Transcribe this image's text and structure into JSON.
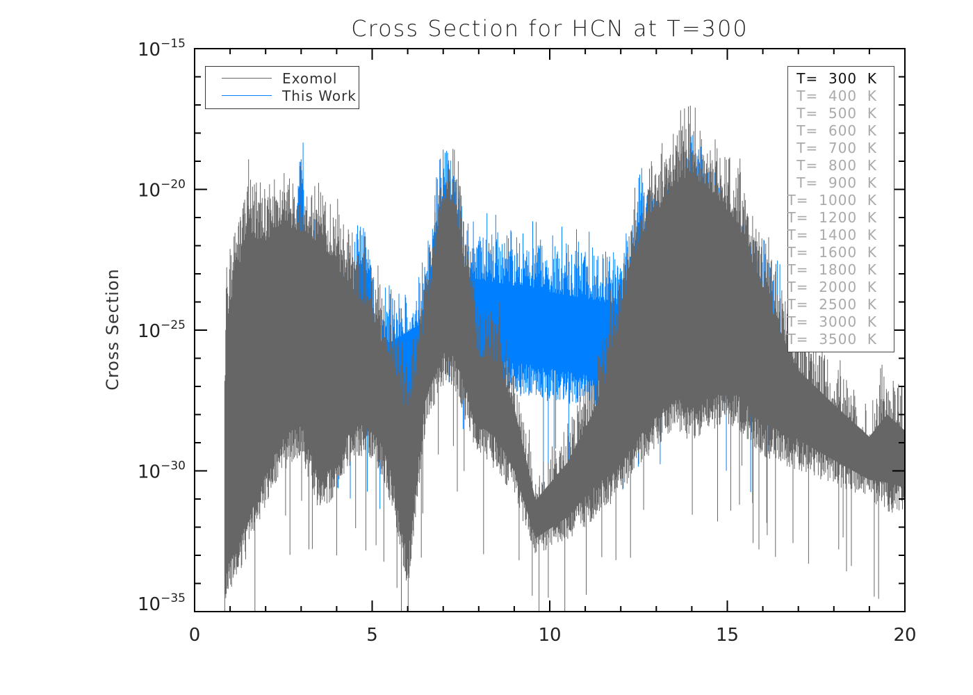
{
  "chart_data": {
    "type": "line",
    "title": "Cross Section for HCN at T=300",
    "xlabel": "",
    "ylabel": "Cross Section",
    "xlim": [
      0,
      20
    ],
    "ylim": [
      1e-35,
      1e-15
    ],
    "yscale": "log",
    "xticks": [
      "0",
      "5",
      "10",
      "15",
      "20"
    ],
    "yticks": [
      {
        "base": "10",
        "exp": "−15",
        "value": -15
      },
      {
        "base": "10",
        "exp": "−20",
        "value": -20
      },
      {
        "base": "10",
        "exp": "−25",
        "value": -25
      },
      {
        "base": "10",
        "exp": "−30",
        "value": -30
      },
      {
        "base": "10",
        "exp": "−35",
        "value": -35
      }
    ],
    "legend": {
      "placement": "top-left",
      "entries": [
        {
          "label": "Exomol",
          "color": "#666666"
        },
        {
          "label": "This Work",
          "color": "#0080ff"
        }
      ]
    },
    "temperature_legend": {
      "placement": "top-right",
      "active": "T=  300  K",
      "entries": [
        "T=  300  K",
        "T=  400  K",
        "T=  500  K",
        "T=  600  K",
        "T=  700  K",
        "T=  800  K",
        "T=  900  K",
        "T=  1000  K",
        "T=  1200  K",
        "T=  1400  K",
        "T=  1600  K",
        "T=  1800  K",
        "T=  2000  K",
        "T=  2500  K",
        "T=  3000  K",
        "T=  3500  K"
      ]
    },
    "series": [
      {
        "name": "This Work",
        "color": "#0080ff",
        "note": "log10 cross-section envelope (upper/lower) vs x",
        "x": [
          2.85,
          2.95,
          3.0,
          3.05,
          3.15,
          4.4,
          4.6,
          4.8,
          5.0,
          5.1,
          6.4,
          6.8,
          7.0,
          7.3,
          7.6,
          12.0,
          12.6,
          13.5,
          14.0,
          14.5,
          15.2,
          16.5
        ],
        "upper": [
          -21,
          -18.5,
          -17.4,
          -18.5,
          -21,
          -23,
          -20.7,
          -20.5,
          -21.5,
          -24,
          -23,
          -19.5,
          -18.3,
          -18.3,
          -21,
          -22,
          -19.5,
          -19.0,
          -17.2,
          -19.0,
          -20.5,
          -23
        ],
        "lower": [
          -26,
          -25,
          -24,
          -25,
          -26,
          -28,
          -27,
          -27,
          -28,
          -29,
          -28,
          -26,
          -25,
          -25,
          -27,
          -28,
          -27,
          -26,
          -25,
          -26,
          -27,
          -28
        ]
      },
      {
        "name": "Exomol",
        "color": "#666666",
        "note": "log10 cross-section envelope (upper/lower) vs x",
        "x": [
          0.85,
          0.9,
          1.5,
          1.9,
          2.5,
          3.0,
          3.5,
          3.9,
          4.5,
          4.8,
          5.2,
          5.6,
          6.0,
          6.5,
          7.0,
          7.3,
          7.7,
          8.0,
          8.5,
          9.0,
          9.6,
          10.5,
          11.5,
          12.5,
          13.5,
          14.0,
          14.5,
          15.3,
          16.0,
          17.0,
          18.0,
          19.0,
          19.5,
          20.0
        ],
        "upper": [
          -25.6,
          -22.5,
          -19.2,
          -19.8,
          -19.0,
          -19.5,
          -19.7,
          -20.4,
          -21.5,
          -22.0,
          -23.1,
          -24.0,
          -26.1,
          -22.5,
          -18.3,
          -18.3,
          -21.5,
          -24.0,
          -24.0,
          -26.0,
          -30.0,
          -28.2,
          -25.0,
          -19.7,
          -17.6,
          -17.3,
          -17.8,
          -19.0,
          -21.5,
          -24.5,
          -26.1,
          -27.6,
          -26.1,
          -27.0
        ],
        "lower": [
          -35.0,
          -34.5,
          -33.0,
          -31.5,
          -30.0,
          -29.5,
          -31.5,
          -31.0,
          -29.5,
          -29.5,
          -30.0,
          -31.5,
          -34.3,
          -28.5,
          -27.0,
          -27.0,
          -28.5,
          -29.5,
          -30.0,
          -31.0,
          -33.0,
          -32.5,
          -31.5,
          -30.0,
          -28.5,
          -29.0,
          -28.5,
          -28.5,
          -29.5,
          -30.0,
          -30.5,
          -31.0,
          -31.5,
          -31.5
        ]
      }
    ]
  }
}
